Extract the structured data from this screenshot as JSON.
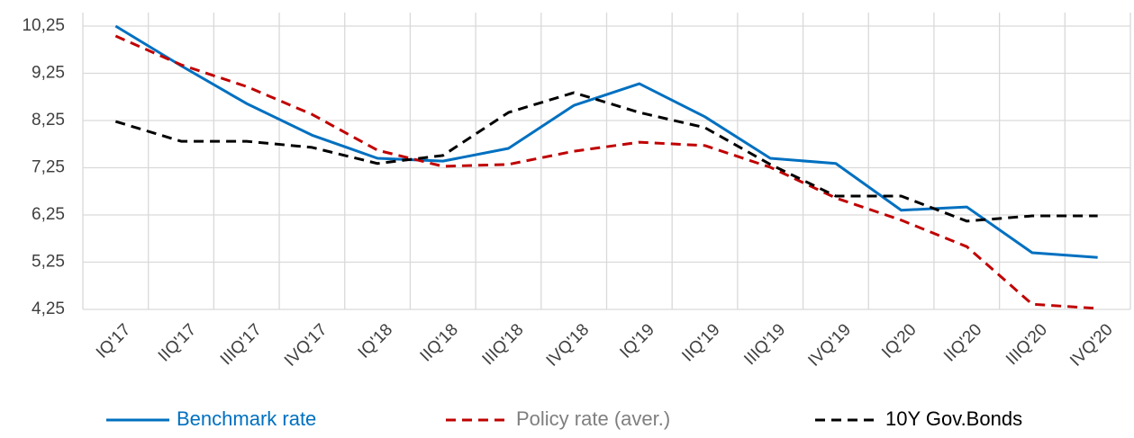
{
  "chart_data": {
    "type": "line",
    "categories": [
      "IQ'17",
      "IIQ'17",
      "IIIQ'17",
      "IVQ'17",
      "IQ'18",
      "IIQ'18",
      "IIIQ'18",
      "IVQ'18",
      "IQ'19",
      "IIQ'19",
      "IIIQ'19",
      "IVQ'19",
      "IQ'20",
      "IIQ'20",
      "IIIQ'20",
      "IVQ'20"
    ],
    "series": [
      {
        "name": "Benchmark rate",
        "color": "#0070c0",
        "dashed": false,
        "legend_text_color": "#0070c0",
        "values": [
          10.25,
          9.41,
          8.61,
          7.94,
          7.45,
          7.39,
          7.66,
          8.57,
          9.03,
          8.33,
          7.45,
          7.34,
          6.35,
          6.42,
          5.45,
          5.35
        ]
      },
      {
        "name": "Policy rate (aver.)",
        "color": "#c00000",
        "dashed": true,
        "legend_text_color": "#7f7f7f",
        "values": [
          10.04,
          9.43,
          8.97,
          8.38,
          7.62,
          7.28,
          7.32,
          7.6,
          7.79,
          7.72,
          7.26,
          6.61,
          6.14,
          5.58,
          4.36,
          4.27
        ]
      },
      {
        "name": "10Y Gov.Bonds",
        "color": "#000000",
        "dashed": true,
        "legend_text_color": "#000000",
        "values": [
          8.23,
          7.81,
          7.81,
          7.68,
          7.34,
          7.51,
          8.42,
          8.84,
          8.42,
          8.1,
          7.32,
          6.65,
          6.65,
          6.12,
          6.23,
          6.23
        ]
      }
    ],
    "ylim": [
      4.25,
      10.25
    ],
    "yticks": [
      {
        "value": 4.25,
        "label": "4,25"
      },
      {
        "value": 5.25,
        "label": "5,25"
      },
      {
        "value": 6.25,
        "label": "6,25"
      },
      {
        "value": 7.25,
        "label": "7,25"
      },
      {
        "value": 8.25,
        "label": "8,25"
      },
      {
        "value": 9.25,
        "label": "9,25"
      },
      {
        "value": 10.25,
        "label": "10,25"
      }
    ],
    "grid": true,
    "legend": "bottom"
  }
}
